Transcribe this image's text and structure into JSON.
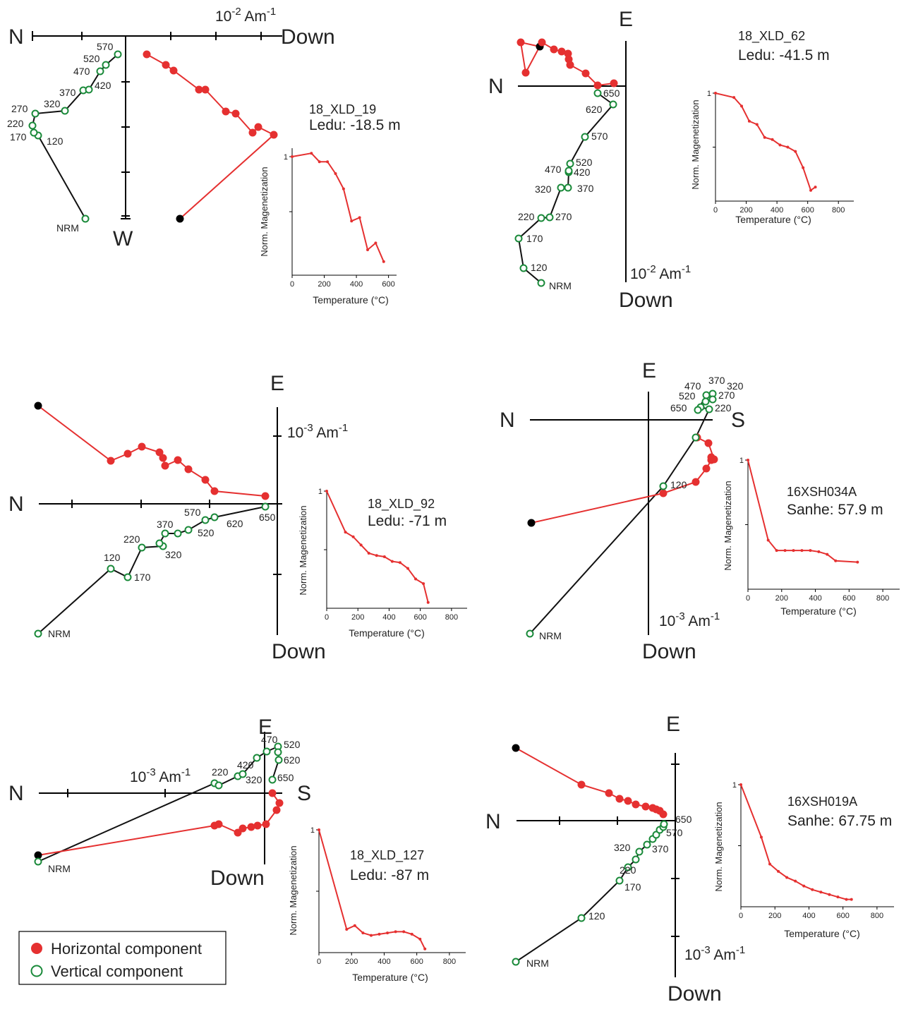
{
  "colors": {
    "horizontal": "#e53030",
    "vertical": "#1a8a3a",
    "path": "#111111",
    "nrm_horizontal": "#000000"
  },
  "chart_data": [
    {
      "type": "line",
      "sample": "18_XLD_19",
      "locality": "Ledu: -18.5 m",
      "axis_labels": {
        "left": "N",
        "right": "Down",
        "bottom": "W",
        "top": "",
        "scale": "10-2 Am-1"
      },
      "vertical_component": [
        {
          "label": "NRM"
        },
        {
          "label": "120"
        },
        {
          "label": "170"
        },
        {
          "label": "220"
        },
        {
          "label": "270"
        },
        {
          "label": "320"
        },
        {
          "label": "370"
        },
        {
          "label": "420"
        },
        {
          "label": "470"
        },
        {
          "label": "520"
        },
        {
          "label": "570"
        }
      ],
      "horizontal_steps": 14,
      "demag_curve": {
        "xlabel": "Temperature (°C)",
        "ylabel": "Norm. Magenetization",
        "x_ticks": [
          "0",
          "200",
          "400",
          "600"
        ],
        "y_ticks": [
          "1"
        ],
        "xlim": [
          0,
          650
        ],
        "ylim": [
          0.3,
          1.05
        ],
        "x": [
          0,
          120,
          170,
          220,
          270,
          320,
          370,
          420,
          470,
          520,
          570
        ],
        "y": [
          1.0,
          1.02,
          0.97,
          0.97,
          0.9,
          0.81,
          0.62,
          0.64,
          0.45,
          0.49,
          0.38
        ]
      }
    },
    {
      "type": "line",
      "sample": "18_XLD_62",
      "locality": "Ledu: -41.5 m",
      "axis_labels": {
        "left": "N",
        "right": "",
        "bottom": "Down",
        "top": "E",
        "scale": "10-2 Am-1"
      },
      "vertical_component": [
        {
          "label": "NRM"
        },
        {
          "label": "120"
        },
        {
          "label": "170"
        },
        {
          "label": "220"
        },
        {
          "label": "270"
        },
        {
          "label": "320"
        },
        {
          "label": "370"
        },
        {
          "label": "420"
        },
        {
          "label": "470"
        },
        {
          "label": "520"
        },
        {
          "label": "570"
        },
        {
          "label": "620"
        },
        {
          "label": "650"
        }
      ],
      "horizontal_steps": 14,
      "demag_curve": {
        "xlabel": "Temperature (°C)",
        "ylabel": "Norm. Magenetization",
        "x_ticks": [
          "0",
          "200",
          "400",
          "600",
          "800"
        ],
        "y_ticks": [
          "1"
        ],
        "xlim": [
          0,
          900
        ],
        "ylim": [
          0,
          1.0
        ],
        "x": [
          0,
          120,
          170,
          220,
          270,
          320,
          370,
          420,
          470,
          520,
          570,
          620,
          650
        ],
        "y": [
          1.0,
          0.96,
          0.88,
          0.74,
          0.71,
          0.59,
          0.57,
          0.52,
          0.5,
          0.46,
          0.31,
          0.1,
          0.13
        ]
      }
    },
    {
      "type": "line",
      "sample": "18_XLD_92",
      "locality": "Ledu: -71 m",
      "axis_labels": {
        "left": "N",
        "right": "",
        "bottom": "Down",
        "top": "E",
        "scale": "10-3 Am-1"
      },
      "vertical_component": [
        {
          "label": "NRM"
        },
        {
          "label": "120"
        },
        {
          "label": "170"
        },
        {
          "label": "220"
        },
        {
          "label": "320"
        },
        {
          "label": "370"
        },
        {
          "label": "520"
        },
        {
          "label": "570"
        },
        {
          "label": "620"
        },
        {
          "label": "650"
        }
      ],
      "horizontal_steps": 14,
      "demag_curve": {
        "xlabel": "Temperature (°C)",
        "ylabel": "Norm. Magenetization",
        "x_ticks": [
          "0",
          "200",
          "400",
          "600",
          "800"
        ],
        "y_ticks": [
          "1"
        ],
        "xlim": [
          0,
          900
        ],
        "ylim": [
          0,
          1.0
        ],
        "x": [
          0,
          120,
          170,
          220,
          270,
          320,
          370,
          420,
          470,
          520,
          570,
          620,
          650
        ],
        "y": [
          1.0,
          0.65,
          0.61,
          0.54,
          0.47,
          0.45,
          0.44,
          0.4,
          0.39,
          0.34,
          0.25,
          0.21,
          0.05
        ]
      }
    },
    {
      "type": "line",
      "sample": "16XSH034A",
      "locality": "Sanhe: 57.9 m",
      "axis_labels": {
        "left": "N",
        "right": "S",
        "bottom": "Down",
        "top": "E",
        "scale": "10-3 Am-1"
      },
      "vertical_component": [
        {
          "label": "NRM"
        },
        {
          "label": "120"
        },
        {
          "label": "220"
        },
        {
          "label": "270"
        },
        {
          "label": "320"
        },
        {
          "label": "370"
        },
        {
          "label": "470"
        },
        {
          "label": "520"
        },
        {
          "label": "650"
        }
      ],
      "horizontal_steps": 14,
      "demag_curve": {
        "xlabel": "Temperature (°C)",
        "ylabel": "Norm. Magenetization",
        "x_ticks": [
          "0",
          "200",
          "400",
          "600",
          "800"
        ],
        "y_ticks": [
          "1"
        ],
        "xlim": [
          0,
          900
        ],
        "ylim": [
          0,
          1.0
        ],
        "x": [
          0,
          120,
          170,
          220,
          270,
          320,
          370,
          420,
          470,
          520,
          650
        ],
        "y": [
          1.0,
          0.38,
          0.3,
          0.3,
          0.3,
          0.3,
          0.3,
          0.29,
          0.27,
          0.22,
          0.21
        ]
      }
    },
    {
      "type": "line",
      "sample": "18_XLD_127",
      "locality": "Ledu: -87 m",
      "axis_labels": {
        "left": "N",
        "right": "S",
        "bottom": "Down",
        "top": "E",
        "scale": "10-3 Am-1"
      },
      "vertical_component": [
        {
          "label": "NRM"
        },
        {
          "label": "220"
        },
        {
          "label": "320"
        },
        {
          "label": "420"
        },
        {
          "label": "470"
        },
        {
          "label": "520"
        },
        {
          "label": "620"
        },
        {
          "label": "650"
        }
      ],
      "horizontal_steps": 14,
      "demag_curve": {
        "xlabel": "Temperature (°C)",
        "ylabel": "Norm. Magenetization",
        "x_ticks": [
          "0",
          "200",
          "400",
          "600",
          "800"
        ],
        "y_ticks": [
          "1"
        ],
        "xlim": [
          0,
          900
        ],
        "ylim": [
          0,
          1.0
        ],
        "x": [
          0,
          170,
          220,
          270,
          320,
          370,
          420,
          470,
          520,
          570,
          620,
          650
        ],
        "y": [
          1.0,
          0.19,
          0.22,
          0.16,
          0.14,
          0.15,
          0.16,
          0.17,
          0.17,
          0.15,
          0.11,
          0.03
        ]
      }
    },
    {
      "type": "line",
      "sample": "16XSH019A",
      "locality": "Sanhe: 67.75 m",
      "axis_labels": {
        "left": "N",
        "right": "",
        "bottom": "Down",
        "top": "E",
        "scale": "10-3 Am-1"
      },
      "vertical_component": [
        {
          "label": "NRM"
        },
        {
          "label": "120"
        },
        {
          "label": "170"
        },
        {
          "label": "220"
        },
        {
          "label": "320"
        },
        {
          "label": "370"
        },
        {
          "label": "570"
        },
        {
          "label": "650"
        }
      ],
      "horizontal_steps": 14,
      "demag_curve": {
        "xlabel": "Temperature (°C)",
        "ylabel": "Norm. Magenetization",
        "x_ticks": [
          "0",
          "200",
          "400",
          "600",
          "800"
        ],
        "y_ticks": [
          "1"
        ],
        "xlim": [
          0,
          900
        ],
        "ylim": [
          0,
          1.0
        ],
        "x": [
          0,
          120,
          170,
          220,
          270,
          320,
          370,
          420,
          470,
          520,
          570,
          620,
          650
        ],
        "y": [
          1.0,
          0.57,
          0.35,
          0.29,
          0.24,
          0.21,
          0.17,
          0.14,
          0.12,
          0.1,
          0.08,
          0.06,
          0.06
        ]
      }
    }
  ],
  "legend": {
    "horizontal": "Horizontal component",
    "vertical": "Vertical component"
  }
}
